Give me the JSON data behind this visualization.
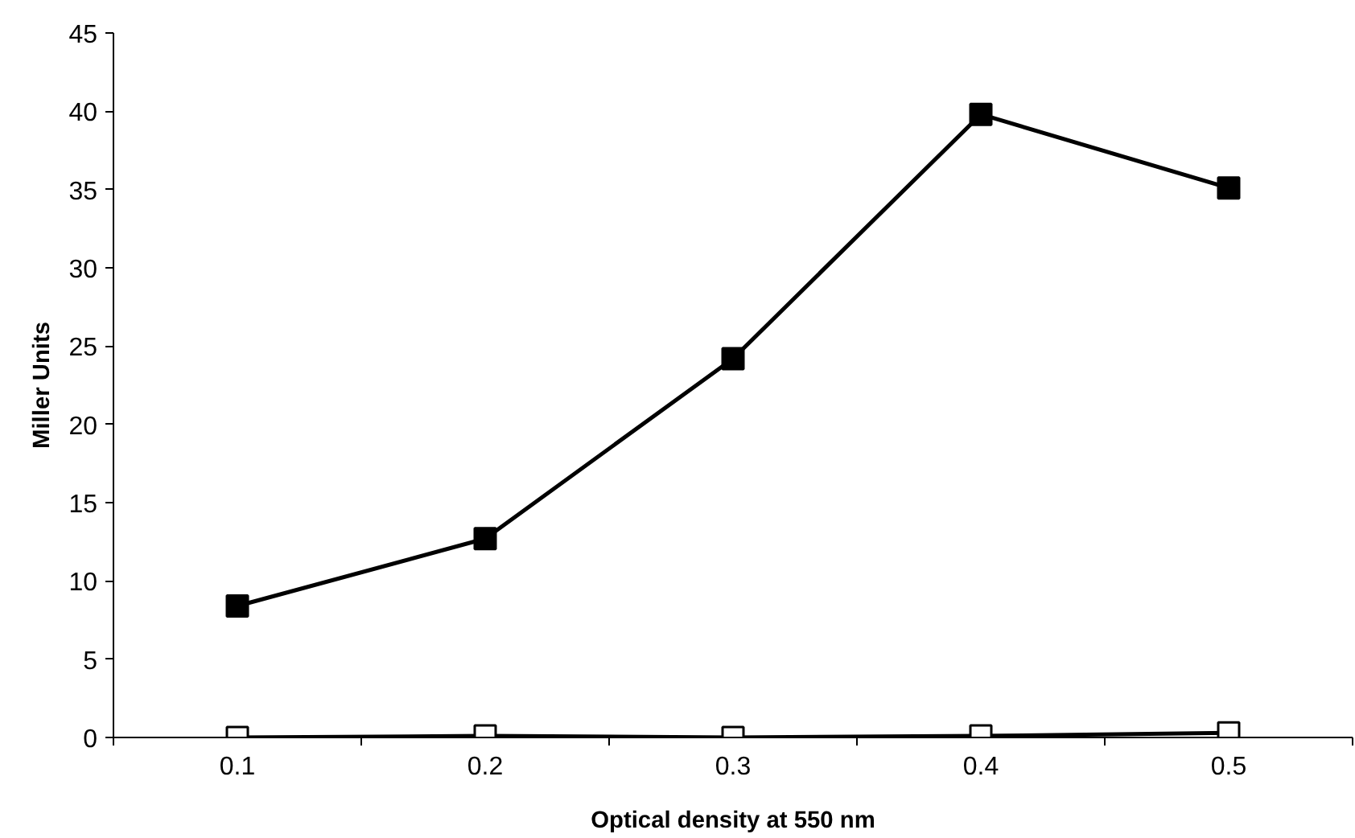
{
  "chart_data": {
    "type": "line",
    "xlabel": "Optical density at 550 nm",
    "ylabel": "Miller Units",
    "categories": [
      "0.1",
      "0.2",
      "0.3",
      "0.4",
      "0.5"
    ],
    "series": [
      {
        "color": "#000000",
        "values": [
          8.4,
          12.7,
          24.2,
          39.8,
          35.1
        ]
      },
      {
        "color": "#ffffff",
        "values": [
          0,
          0.1,
          0,
          0.1,
          0.3
        ]
      }
    ],
    "ylim": [
      0,
      45
    ],
    "yticks": [
      0,
      5,
      10,
      15,
      20,
      25,
      30,
      35,
      40,
      45
    ],
    "grid": false,
    "marker": "square",
    "line_style": "solid"
  }
}
